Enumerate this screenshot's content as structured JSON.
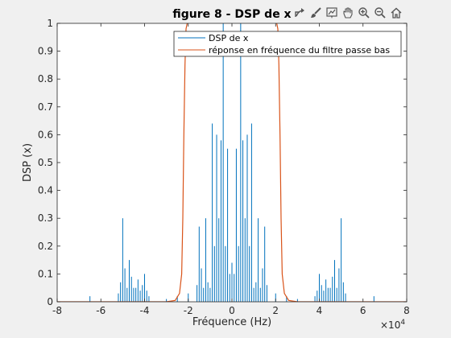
{
  "toolbar": {
    "icons": [
      "export-icon",
      "brush-icon",
      "data-tips-icon",
      "pan-icon",
      "zoom-in-icon",
      "zoom-out-icon",
      "home-icon"
    ]
  },
  "chart_data": {
    "type": "line",
    "title": "figure 8 - DSP de x",
    "xlabel": "Fréquence (Hz)",
    "ylabel": "DSP (x)",
    "x_exponent_label": "×10",
    "x_exponent_power": "4",
    "xlim": [
      -80000,
      80000
    ],
    "ylim": [
      0,
      1
    ],
    "x_ticks": [
      -80000,
      -60000,
      -40000,
      -20000,
      0,
      20000,
      40000,
      60000,
      80000
    ],
    "x_tick_labels": [
      "-8",
      "-6",
      "-4",
      "-2",
      "0",
      "2",
      "4",
      "6",
      "8"
    ],
    "y_ticks": [
      0,
      0.1,
      0.2,
      0.3,
      0.4,
      0.5,
      0.6,
      0.7,
      0.8,
      0.9,
      1
    ],
    "y_tick_labels": [
      "0",
      "0.1",
      "0.2",
      "0.3",
      "0.4",
      "0.5",
      "0.6",
      "0.7",
      "0.8",
      "0.9",
      "1"
    ],
    "grid": false,
    "legend_position": "top-right",
    "colors": {
      "dsp": "#0072bd",
      "filter": "#d95319"
    },
    "series": [
      {
        "name": "DSP de x",
        "color": "#0072bd",
        "x": [
          -65000,
          -52000,
          -51000,
          -50000,
          -49000,
          -48000,
          -47000,
          -46000,
          -45000,
          -44000,
          -43000,
          -42000,
          -41000,
          -40000,
          -39000,
          -38000,
          -30000,
          -25000,
          -20000,
          -16000,
          -15000,
          -14000,
          -13000,
          -12000,
          -11000,
          -10000,
          -9000,
          -8000,
          -7000,
          -6000,
          -5000,
          -4000,
          -3000,
          -2000,
          -1000,
          0,
          1000,
          2000,
          3000,
          4000,
          5000,
          6000,
          7000,
          8000,
          9000,
          10000,
          11000,
          12000,
          13000,
          14000,
          15000,
          16000,
          20000,
          25000,
          30000,
          38000,
          39000,
          40000,
          41000,
          42000,
          43000,
          44000,
          45000,
          46000,
          47000,
          48000,
          49000,
          50000,
          51000,
          52000,
          65000
        ],
        "y": [
          0.02,
          0.03,
          0.07,
          0.3,
          0.12,
          0.05,
          0.15,
          0.09,
          0.05,
          0.05,
          0.08,
          0.04,
          0.06,
          0.1,
          0.04,
          0.02,
          0.01,
          0.02,
          0.03,
          0.06,
          0.27,
          0.12,
          0.05,
          0.3,
          0.07,
          0.05,
          0.64,
          0.2,
          0.6,
          0.3,
          0.58,
          1,
          0.2,
          0.55,
          0.1,
          0.14,
          0.1,
          0.55,
          0.2,
          1,
          0.58,
          0.3,
          0.6,
          0.2,
          0.64,
          0.05,
          0.07,
          0.3,
          0.05,
          0.12,
          0.27,
          0.06,
          0.03,
          0.02,
          0.01,
          0.02,
          0.04,
          0.1,
          0.06,
          0.04,
          0.08,
          0.05,
          0.05,
          0.09,
          0.15,
          0.05,
          0.12,
          0.3,
          0.07,
          0.03,
          0.02
        ]
      },
      {
        "name": "réponse en fréquence du filtre passe bas",
        "color": "#d95319",
        "x": [
          -80000,
          -30000,
          -26000,
          -24000,
          -23000,
          -22500,
          -22000,
          -21500,
          -21000,
          -20000,
          -18000,
          18000,
          20000,
          21000,
          21500,
          22000,
          22500,
          23000,
          24000,
          26000,
          30000,
          80000
        ],
        "y": [
          0,
          0,
          0.005,
          0.03,
          0.1,
          0.3,
          0.6,
          0.85,
          0.98,
          1.02,
          1.03,
          1.03,
          1.02,
          0.98,
          0.85,
          0.6,
          0.3,
          0.1,
          0.03,
          0.005,
          0,
          0
        ]
      }
    ]
  }
}
